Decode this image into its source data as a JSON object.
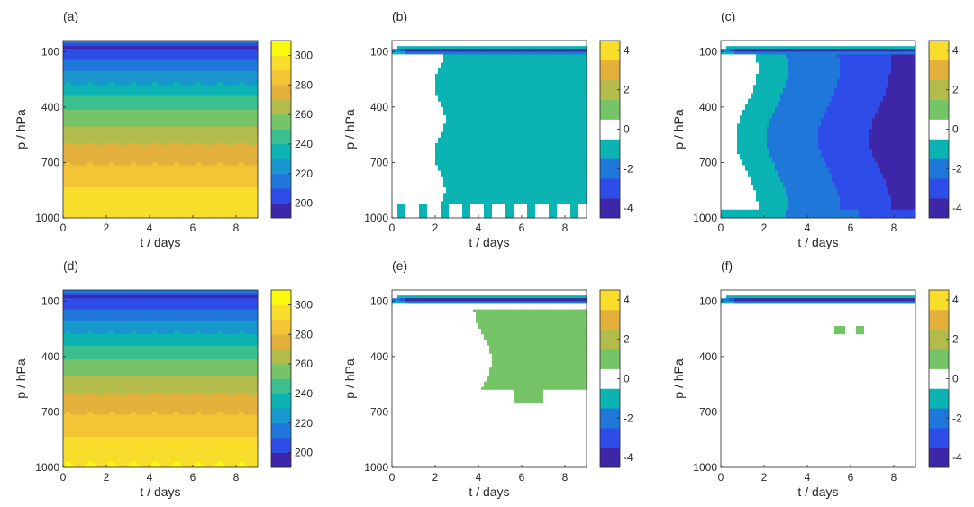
{
  "colormap": [
    "#3e26a8",
    "#2e4ce8",
    "#1f78d9",
    "#1797cd",
    "#0bb3b3",
    "#3bbf8f",
    "#75c467",
    "#b3bc4a",
    "#e3b13b",
    "#f3c435",
    "#f8de2a",
    "#f9fb0e"
  ],
  "zero_color": "#ffffff",
  "contour_line_color": "#000000",
  "chart_data": [
    {
      "id": "a",
      "type": "heatmap",
      "panel_label": "(a)",
      "xlabel": "t / days",
      "ylabel": "p / hPa",
      "xlim": [
        0,
        9
      ],
      "ylim": [
        1000,
        40
      ],
      "y_reversed": true,
      "xticks": [
        0,
        2,
        4,
        6,
        8
      ],
      "yticks": [
        100,
        400,
        700,
        1000
      ],
      "colorbar": {
        "levels": [
          190,
          200,
          210,
          220,
          230,
          240,
          250,
          260,
          270,
          280,
          290,
          300,
          310
        ],
        "ticks": [
          200,
          220,
          240,
          260,
          280,
          300
        ]
      },
      "field": "temperature",
      "profile": [
        [
          40,
          216
        ],
        [
          75,
          199
        ],
        [
          110,
          203
        ],
        [
          150,
          211
        ],
        [
          220,
          222
        ],
        [
          320,
          237
        ],
        [
          420,
          250
        ],
        [
          520,
          262
        ],
        [
          620,
          272
        ],
        [
          720,
          281
        ],
        [
          820,
          289
        ],
        [
          920,
          295
        ],
        [
          1000,
          299
        ]
      ]
    },
    {
      "id": "b",
      "type": "heatmap",
      "panel_label": "(b)",
      "xlabel": "t / days",
      "ylabel": "p / hPa",
      "xlim": [
        0,
        9
      ],
      "ylim": [
        1000,
        40
      ],
      "y_reversed": true,
      "xticks": [
        0,
        2,
        4,
        6,
        8
      ],
      "yticks": [
        100,
        400,
        700,
        1000
      ],
      "colorbar": {
        "levels": [
          -4.5,
          -3.5,
          -2.5,
          -1.5,
          -0.5,
          0.5,
          1.5,
          2.5,
          3.5,
          4.5
        ],
        "ticks": [
          -4,
          -2,
          0,
          2,
          4
        ]
      },
      "field": "difference",
      "pattern": "uniform cool anomaly ≈ -1 K below 150 hPa after day 2, strong negative band near 100 hPa"
    },
    {
      "id": "c",
      "type": "heatmap",
      "panel_label": "(c)",
      "xlabel": "t / days",
      "ylabel": "p / hPa",
      "xlim": [
        0,
        9
      ],
      "ylim": [
        1000,
        40
      ],
      "y_reversed": true,
      "xticks": [
        0,
        2,
        4,
        6,
        8
      ],
      "yticks": [
        100,
        400,
        700,
        1000
      ],
      "colorbar": {
        "levels": [
          -4.5,
          -3.5,
          -2.5,
          -1.5,
          -0.5,
          0.5,
          1.5,
          2.5,
          3.5,
          4.5
        ],
        "ticks": [
          -4,
          -2,
          0,
          2,
          4
        ]
      },
      "field": "difference",
      "pattern": "cooling increasing with time, up to ≈ -4 K near 200 hPa at day 8.5"
    },
    {
      "id": "d",
      "type": "heatmap",
      "panel_label": "(d)",
      "xlabel": "t / days",
      "ylabel": "p / hPa",
      "xlim": [
        0,
        9
      ],
      "ylim": [
        1000,
        40
      ],
      "y_reversed": true,
      "xticks": [
        0,
        2,
        4,
        6,
        8
      ],
      "yticks": [
        100,
        400,
        700,
        1000
      ],
      "colorbar": {
        "levels": [
          190,
          200,
          210,
          220,
          230,
          240,
          250,
          260,
          270,
          280,
          290,
          300,
          310
        ],
        "ticks": [
          200,
          220,
          240,
          260,
          280,
          300
        ]
      },
      "field": "temperature",
      "profile": [
        [
          40,
          216
        ],
        [
          75,
          199
        ],
        [
          110,
          203
        ],
        [
          150,
          211
        ],
        [
          220,
          222
        ],
        [
          320,
          237
        ],
        [
          420,
          250
        ],
        [
          520,
          262
        ],
        [
          620,
          272
        ],
        [
          720,
          281
        ],
        [
          820,
          289
        ],
        [
          920,
          295
        ],
        [
          1000,
          301
        ]
      ]
    },
    {
      "id": "e",
      "type": "heatmap",
      "panel_label": "(e)",
      "xlabel": "t / days",
      "ylabel": "p / hPa",
      "xlim": [
        0,
        9
      ],
      "ylim": [
        1000,
        40
      ],
      "y_reversed": true,
      "xticks": [
        0,
        2,
        4,
        6,
        8
      ],
      "yticks": [
        100,
        400,
        700,
        1000
      ],
      "colorbar": {
        "levels": [
          -4.5,
          -3.5,
          -2.5,
          -1.5,
          -0.5,
          0.5,
          1.5,
          2.5,
          3.5,
          4.5
        ],
        "ticks": [
          -4,
          -2,
          0,
          2,
          4
        ]
      },
      "field": "difference",
      "pattern": "negative band near 100 hPa; weak warm anomaly ≈ +1 K between 150 and 600 hPa after day 4"
    },
    {
      "id": "f",
      "type": "heatmap",
      "panel_label": "(f)",
      "xlabel": "t / days",
      "ylabel": "p / hPa",
      "xlim": [
        0,
        9
      ],
      "ylim": [
        1000,
        40
      ],
      "y_reversed": true,
      "xticks": [
        0,
        2,
        4,
        6,
        8
      ],
      "yticks": [
        100,
        400,
        700,
        1000
      ],
      "colorbar": {
        "levels": [
          -4.5,
          -3.5,
          -2.5,
          -1.5,
          -0.5,
          0.5,
          1.5,
          2.5,
          3.5,
          4.5
        ],
        "ticks": [
          -4,
          -2,
          0,
          2,
          4
        ]
      },
      "field": "difference",
      "pattern": "negative band near 100 hPa only; small warm patches near 250 hPa at day 5-6.5"
    }
  ]
}
